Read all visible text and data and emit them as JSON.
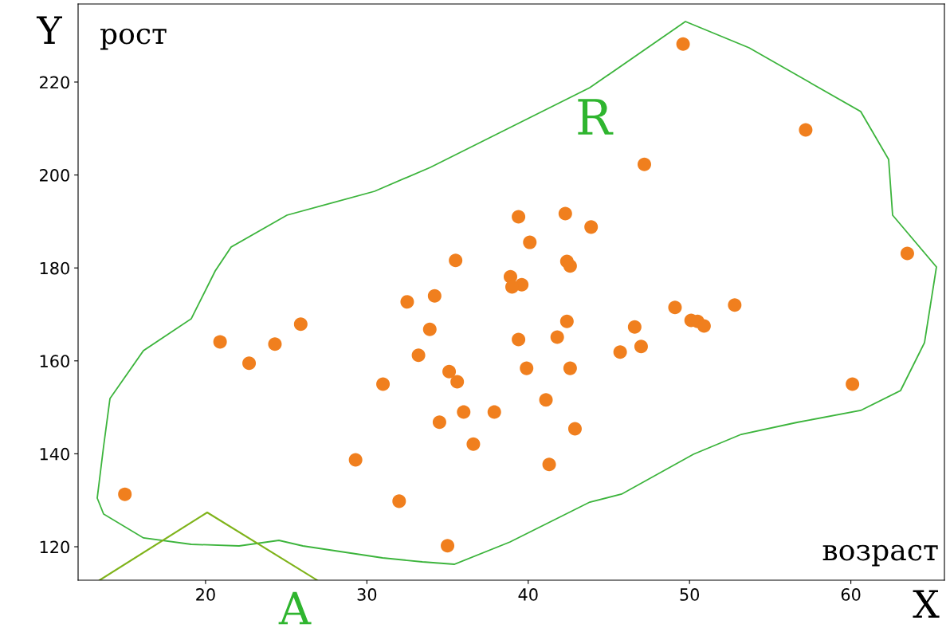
{
  "chart_data": {
    "type": "scatter",
    "xlabel": "возраст",
    "ylabel": "рост",
    "annotations": [
      "Y",
      "X",
      "R",
      "A"
    ],
    "xlim": [
      12.1,
      65.8
    ],
    "ylim": [
      112.8,
      236.8
    ],
    "xticks": [
      20,
      30,
      40,
      50,
      60
    ],
    "yticks": [
      120,
      140,
      160,
      180,
      200,
      220
    ],
    "marker": "circle",
    "grid": false,
    "series": [
      {
        "color": "#f07f1e",
        "x": [
          49.6,
          57.2,
          47.2,
          63.5,
          39.4,
          42.3,
          43.9,
          40.1,
          35.5,
          42.4,
          42.6,
          38.9,
          39.6,
          39.0,
          34.2,
          32.5,
          49.1,
          52.8,
          25.9,
          33.9,
          42.4,
          46.6,
          50.1,
          50.5,
          50.9,
          20.9,
          24.3,
          22.7,
          39.4,
          41.8,
          33.2,
          45.7,
          47.0,
          35.1,
          35.6,
          39.9,
          42.6,
          31.0,
          60.1,
          41.1,
          36.0,
          37.9,
          34.5,
          42.9,
          36.6,
          29.3,
          41.3,
          15.0,
          32.0,
          35.0
        ],
        "values": [
          228.2,
          209.7,
          202.3,
          183.1,
          191.0,
          191.7,
          188.8,
          185.5,
          181.6,
          181.4,
          180.4,
          178.1,
          176.4,
          175.9,
          174.0,
          172.7,
          171.5,
          172.0,
          167.9,
          166.8,
          168.5,
          167.3,
          168.7,
          168.5,
          167.5,
          164.1,
          163.6,
          159.5,
          164.6,
          165.1,
          161.2,
          161.9,
          163.1,
          157.7,
          155.5,
          158.4,
          158.4,
          155.0,
          155.0,
          151.6,
          149.0,
          149.0,
          146.8,
          145.4,
          142.1,
          138.7,
          137.7,
          131.3,
          129.8,
          120.2
        ]
      }
    ]
  }
}
